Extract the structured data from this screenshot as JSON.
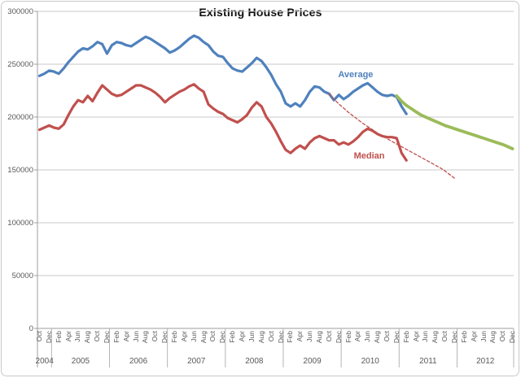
{
  "chart_data": {
    "type": "line",
    "title": "Existing House Prices",
    "xlabel": "",
    "ylabel": "",
    "ylim": [
      0,
      300000
    ],
    "ytick_interval": 50000,
    "ytick_labels": [
      "300000",
      "250000",
      "200000",
      "150000",
      "100000",
      "50000",
      "0"
    ],
    "grid": "horizontal",
    "legend_position": "none",
    "x_range": "Oct 2004 - Dec 2012",
    "years": [
      {
        "label": "2004",
        "months": [
          "Oct",
          "Dec"
        ]
      },
      {
        "label": "2005",
        "months": [
          "Feb",
          "Apr",
          "Jun",
          "Aug",
          "Oct",
          "Dec"
        ]
      },
      {
        "label": "2006",
        "months": [
          "Feb",
          "Apr",
          "Jun",
          "Aug",
          "Oct",
          "Dec"
        ]
      },
      {
        "label": "2007",
        "months": [
          "Feb",
          "Apr",
          "Jun",
          "Aug",
          "Oct",
          "Dec"
        ]
      },
      {
        "label": "2008",
        "months": [
          "Feb",
          "Apr",
          "Jun",
          "Aug",
          "Oct",
          "Dec"
        ]
      },
      {
        "label": "2009",
        "months": [
          "Feb",
          "Apr",
          "Jun",
          "Aug",
          "Oct",
          "Dec"
        ]
      },
      {
        "label": "2010",
        "months": [
          "Feb",
          "Apr",
          "Jun",
          "Aug",
          "Oct",
          "Dec"
        ]
      },
      {
        "label": "2011",
        "months": [
          "Feb",
          "Apr",
          "Jun",
          "Aug",
          "Oct",
          "Dec"
        ]
      },
      {
        "label": "2012",
        "months": [
          "Feb",
          "Apr",
          "Jun",
          "Aug",
          "Oct",
          "Dec"
        ]
      }
    ],
    "series": [
      {
        "name": "Average",
        "color": "#4F81BD",
        "style": "solid",
        "width": 3.2,
        "start_month_index": 0,
        "values": [
          239000,
          241000,
          244000,
          243000,
          241000,
          246000,
          252000,
          257000,
          262000,
          265000,
          264000,
          267000,
          271000,
          269000,
          260000,
          268000,
          271000,
          270000,
          268000,
          267000,
          270000,
          273000,
          276000,
          274000,
          271000,
          268000,
          265000,
          261000,
          263000,
          266000,
          270000,
          274000,
          277000,
          275000,
          271000,
          268000,
          262000,
          258000,
          257000,
          251000,
          246000,
          244000,
          243000,
          247000,
          251000,
          256000,
          253000,
          247000,
          240000,
          231000,
          224000,
          213000,
          210000,
          213000,
          210000,
          216000,
          224000,
          229000,
          228000,
          224000,
          222000,
          216000,
          221000,
          217000,
          220000,
          224000,
          227000,
          230000,
          232000,
          228000,
          224000,
          221000,
          220000,
          221000,
          219000,
          210000,
          203000
        ]
      },
      {
        "name": "Median",
        "color": "#C0504D",
        "style": "solid",
        "width": 3.2,
        "start_month_index": 0,
        "values": [
          188000,
          190000,
          192000,
          190000,
          189000,
          193000,
          202000,
          210000,
          216000,
          214000,
          220000,
          215000,
          223000,
          230000,
          226000,
          222000,
          220000,
          221000,
          224000,
          227000,
          230000,
          230000,
          228000,
          226000,
          223000,
          219000,
          214000,
          218000,
          221000,
          224000,
          226000,
          229000,
          231000,
          227000,
          224000,
          212000,
          208000,
          205000,
          203000,
          199000,
          197000,
          195000,
          198000,
          202000,
          209000,
          214000,
          210000,
          200000,
          194000,
          186000,
          177000,
          169000,
          166000,
          170000,
          173000,
          170000,
          176000,
          180000,
          182000,
          180000,
          178000,
          178000,
          174000,
          176000,
          174000,
          177000,
          181000,
          186000,
          189000,
          187000,
          184000,
          182000,
          181000,
          181000,
          180000,
          166000,
          159000
        ]
      },
      {
        "name": "Average projection",
        "color": "#9BBB59",
        "style": "solid",
        "width": 3.8,
        "start_month_index": 74,
        "values": [
          220000,
          215000,
          211000,
          208000,
          205000,
          202000,
          200000,
          198000,
          196000,
          194000,
          192000,
          190500,
          189000,
          187500,
          186000,
          184500,
          183000,
          181500,
          180000,
          178500,
          177000,
          175500,
          174000,
          172000,
          170000
        ]
      },
      {
        "name": "Median projection",
        "color": "#C0504D",
        "style": "dashed",
        "width": 1.3,
        "start_month_index": 60,
        "values": [
          222000,
          217000,
          212500,
          208500,
          204500,
          201000,
          197500,
          194000,
          191000,
          188000,
          185000,
          182000,
          179500,
          177000,
          174500,
          172000,
          169500,
          167000,
          164500,
          162000,
          159500,
          157000,
          154500,
          152000,
          149000,
          145500,
          142000
        ]
      }
    ],
    "annotations": [
      {
        "text": "Average",
        "color": "#4F81BD",
        "x_month": 65.5,
        "value": 240000
      },
      {
        "text": "Median",
        "color": "#C0504D",
        "x_month": 68.3,
        "value": 163000
      }
    ]
  },
  "colors": {
    "gridline": "#c9c9c9",
    "axis": "#9e9e9e",
    "separator": "#b5b5b5",
    "tick_label": "#595959",
    "title": "#0d0d0d",
    "frame_border": "#c9c9c9"
  }
}
